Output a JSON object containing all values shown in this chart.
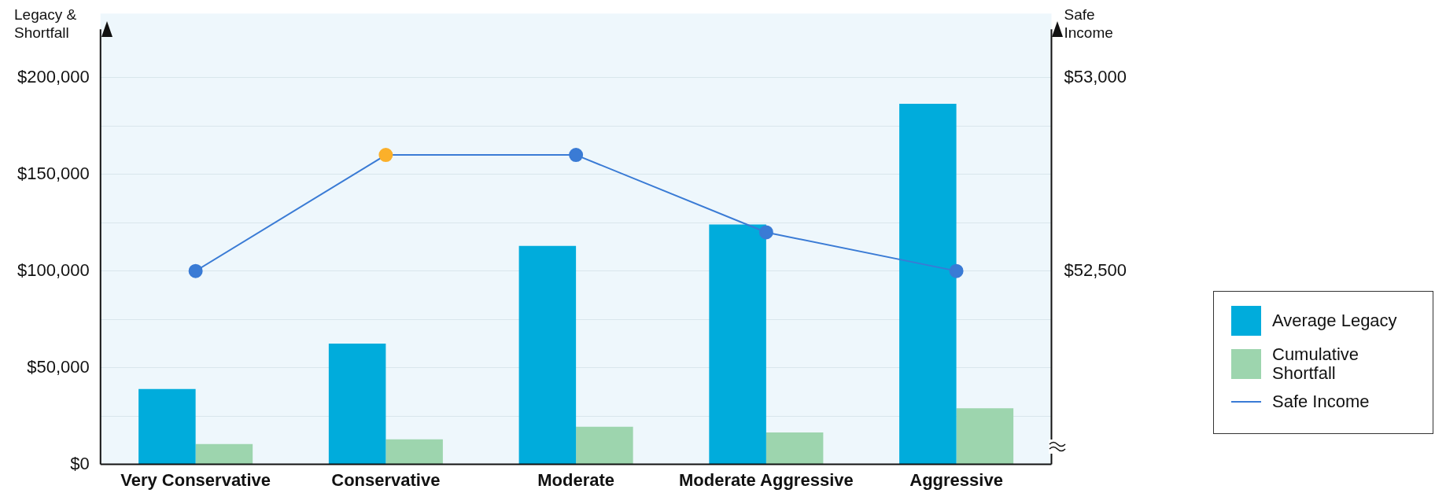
{
  "chart_data": {
    "type": "bar",
    "ylabel": "Legacy & Shortfall",
    "y2label": "Safe Income",
    "categories": [
      "Very Conservative",
      "Conservative",
      "Moderate",
      "Moderate Aggressive",
      "Aggressive"
    ],
    "series": [
      {
        "name": "Average Legacy",
        "color": "#00acdc",
        "values": [
          39000,
          62500,
          113000,
          124000,
          186500
        ]
      },
      {
        "name": "Cumulative Shortfall",
        "color": "#9dd5ae",
        "values": [
          10500,
          13000,
          19500,
          16500,
          29000
        ]
      },
      {
        "name": "Safe Income",
        "type": "line",
        "axis": "y2",
        "color": "#3a7bd5",
        "colors": [
          "#3a7bd5",
          "#fbb02a",
          "#3a7bd5",
          "#3a7bd5",
          "#3a7bd5"
        ],
        "values": [
          52500,
          52800,
          52800,
          52600,
          52500
        ]
      }
    ],
    "ylim": [
      0,
      225000
    ],
    "yticks": [
      {
        "value": 0,
        "label": "$0"
      },
      {
        "value": 25000,
        "label": null
      },
      {
        "value": 50000,
        "label": "$50,000"
      },
      {
        "value": 75000,
        "label": null
      },
      {
        "value": 100000,
        "label": "$100,000"
      },
      {
        "value": 125000,
        "label": null
      },
      {
        "value": 150000,
        "label": "$150,000"
      },
      {
        "value": 175000,
        "label": null
      },
      {
        "value": 200000,
        "label": "$200,000"
      }
    ],
    "y2lim": [
      52000,
      53125
    ],
    "y2ticks": [
      {
        "value": 52500,
        "label": "$52,500"
      },
      {
        "value": 53000,
        "label": "$53,000"
      }
    ],
    "grid": "y",
    "legend": "right",
    "marker": "circle"
  }
}
